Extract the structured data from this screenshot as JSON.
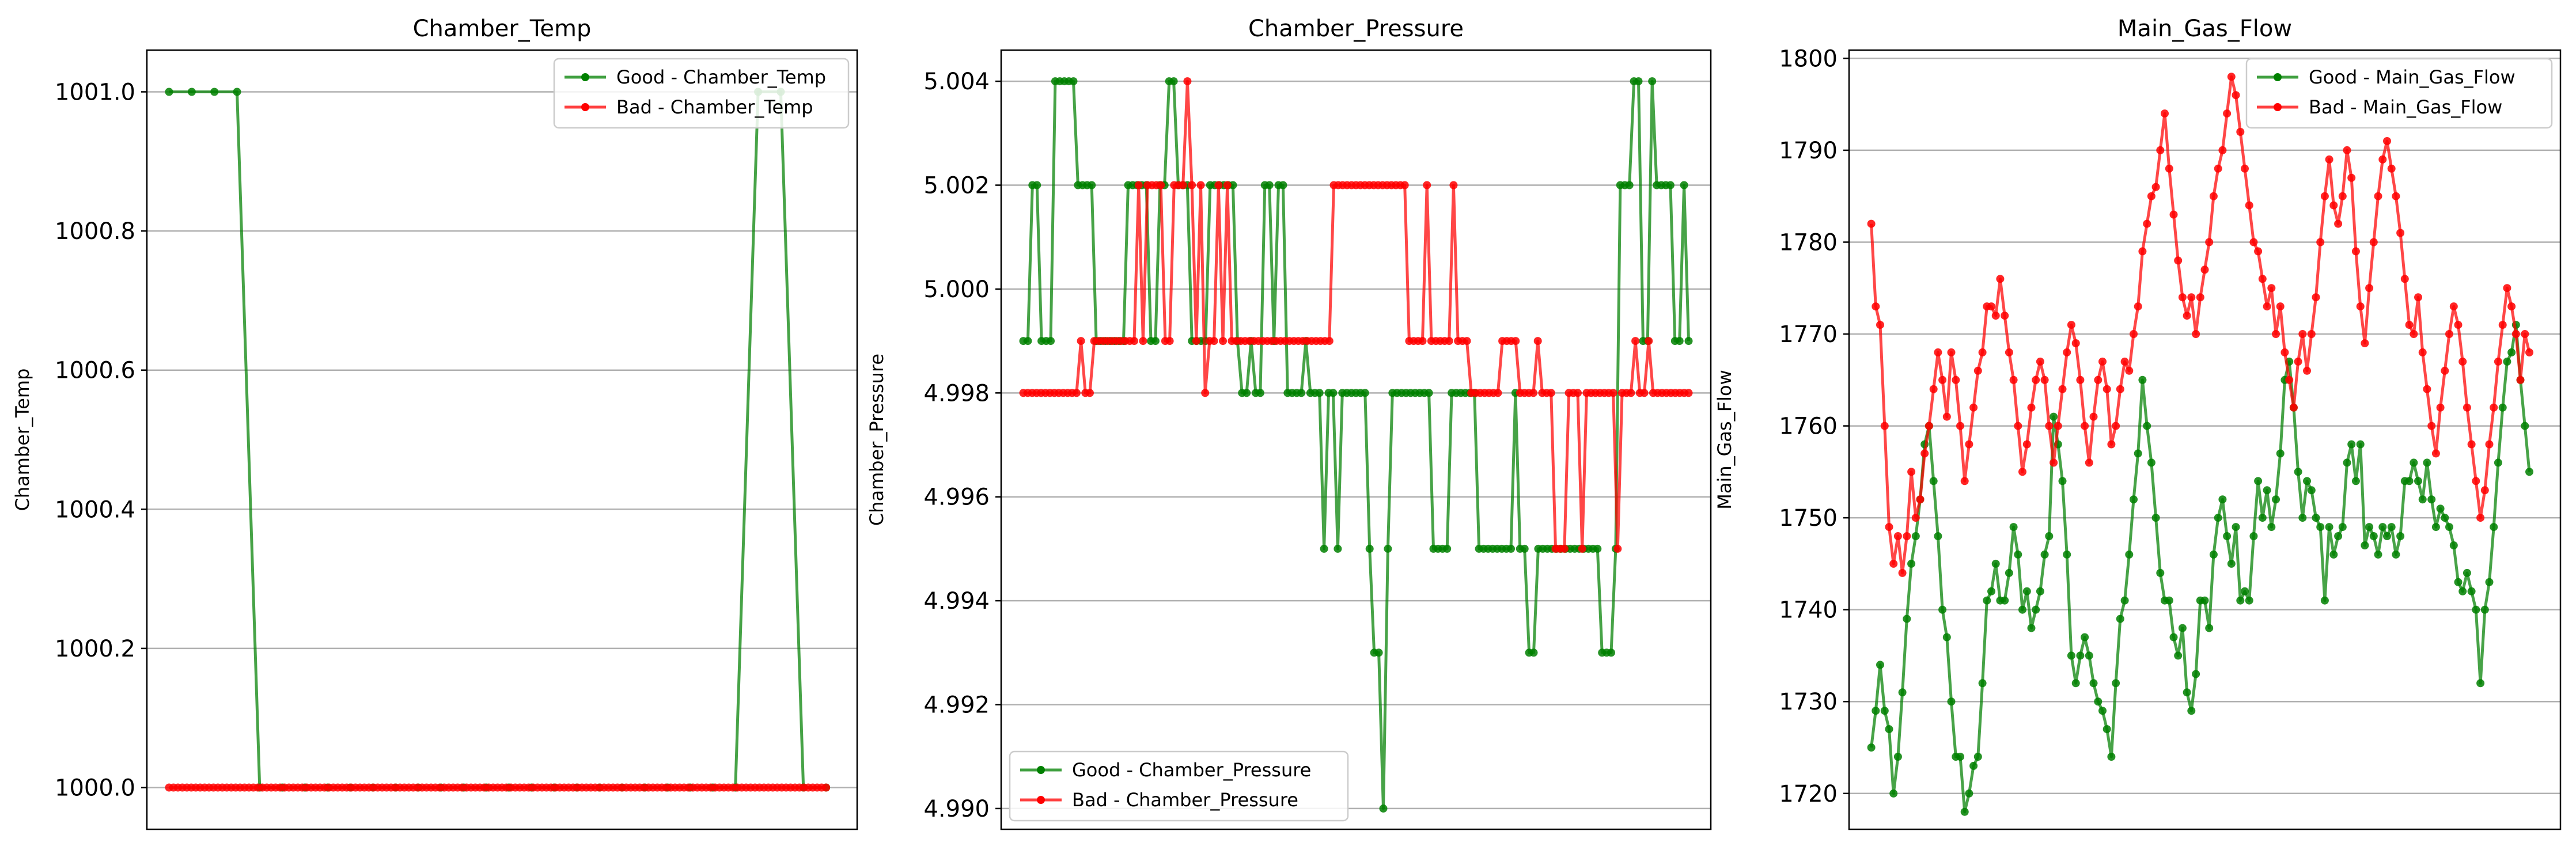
{
  "colors": {
    "good": "#008000",
    "bad": "#ff0000",
    "grid": "#b0b0b0",
    "axis": "#000000"
  },
  "chart_data": [
    {
      "type": "line",
      "title": "Chamber_Temp",
      "xlabel": "",
      "ylabel": "Chamber_Temp",
      "ylim": [
        999.94,
        1001.06
      ],
      "yticks": [
        1000.0,
        1000.2,
        1000.4,
        1000.6,
        1000.8,
        1001.0
      ],
      "ytick_labels": [
        "1000.0",
        "1000.2",
        "1000.4",
        "1000.6",
        "1000.8",
        "1001.0"
      ],
      "grid": "y",
      "legend_position": "upper right",
      "xlim": [
        -5,
        155
      ],
      "series": [
        {
          "name": "Good - Chamber_Temp",
          "color": "#008000",
          "values": [
            1001,
            1001,
            1001,
            1001,
            1000,
            1000,
            1000,
            1000,
            1000,
            1000,
            1000,
            1000,
            1000,
            1000,
            1000,
            1000,
            1000,
            1000,
            1000,
            1000,
            1000,
            1000,
            1000,
            1000,
            1000,
            1000,
            1001,
            1001,
            1000,
            1000
          ]
        },
        {
          "name": "Bad - Chamber_Temp",
          "color": "#ff0000",
          "values": [
            1000,
            1000,
            1000,
            1000,
            1000,
            1000,
            1000,
            1000,
            1000,
            1000,
            1000,
            1000,
            1000,
            1000,
            1000,
            1000,
            1000,
            1000,
            1000,
            1000,
            1000,
            1000,
            1000,
            1000,
            1000,
            1000,
            1000,
            1000,
            1000,
            1000,
            1000,
            1000,
            1000,
            1000,
            1000,
            1000,
            1000,
            1000,
            1000,
            1000,
            1000,
            1000,
            1000,
            1000,
            1000,
            1000,
            1000,
            1000,
            1000,
            1000,
            1000,
            1000,
            1000,
            1000,
            1000,
            1000,
            1000,
            1000,
            1000,
            1000,
            1000,
            1000,
            1000,
            1000,
            1000,
            1000,
            1000,
            1000,
            1000,
            1000,
            1000,
            1000,
            1000,
            1000,
            1000,
            1000,
            1000,
            1000,
            1000,
            1000,
            1000,
            1000,
            1000,
            1000,
            1000,
            1000,
            1000,
            1000,
            1000,
            1000,
            1000,
            1000,
            1000,
            1000,
            1000,
            1000,
            1000,
            1000,
            1000,
            1000,
            1000,
            1000,
            1000,
            1000,
            1000,
            1000,
            1000,
            1000,
            1000,
            1000,
            1000,
            1000,
            1000,
            1000,
            1000,
            1000,
            1000,
            1000,
            1000,
            1000,
            1000,
            1000,
            1000,
            1000,
            1000,
            1000,
            1000,
            1000,
            1000,
            1000,
            1000,
            1000,
            1000,
            1000,
            1000,
            1000,
            1000,
            1000,
            1000,
            1000,
            1000,
            1000,
            1000,
            1000,
            1000,
            1000,
            1000,
            1000,
            1000
          ]
        }
      ]
    },
    {
      "type": "line",
      "title": "Chamber_Pressure",
      "xlabel": "",
      "ylabel": "Chamber_Pressure",
      "ylim": [
        4.9896,
        5.0046
      ],
      "yticks": [
        4.99,
        4.992,
        4.994,
        4.996,
        4.998,
        5.0,
        5.002,
        5.004
      ],
      "ytick_labels": [
        "4.990",
        "4.992",
        "4.994",
        "4.996",
        "4.998",
        "5.000",
        "5.002",
        "5.004"
      ],
      "grid": "y",
      "legend_position": "lower left",
      "xlim": [
        -5,
        155
      ],
      "series": [
        {
          "name": "Good - Chamber_Pressure",
          "color": "#008000",
          "values": [
            4.999,
            4.999,
            5.002,
            5.002,
            4.999,
            4.999,
            4.999,
            5.004,
            5.004,
            5.004,
            5.004,
            5.004,
            5.002,
            5.002,
            5.002,
            5.002,
            4.999,
            4.999,
            4.999,
            4.999,
            4.999,
            4.999,
            4.999,
            5.002,
            5.002,
            5.002,
            5.002,
            5.002,
            4.999,
            4.999,
            5.002,
            5.002,
            5.004,
            5.004,
            5.002,
            5.002,
            5.002,
            4.999,
            4.999,
            4.999,
            4.999,
            5.002,
            5.002,
            5.002,
            5.002,
            5.002,
            5.002,
            4.999,
            4.998,
            4.998,
            4.999,
            4.998,
            4.998,
            5.002,
            5.002,
            4.999,
            5.002,
            5.002,
            4.998,
            4.998,
            4.998,
            4.998,
            4.999,
            4.998,
            4.998,
            4.998,
            4.995,
            4.998,
            4.998,
            4.995,
            4.998,
            4.998,
            4.998,
            4.998,
            4.998,
            4.998,
            4.995,
            4.993,
            4.993,
            4.99,
            4.995,
            4.998,
            4.998,
            4.998,
            4.998,
            4.998,
            4.998,
            4.998,
            4.998,
            4.998,
            4.995,
            4.995,
            4.995,
            4.995,
            4.998,
            4.998,
            4.998,
            4.998,
            4.998,
            4.998,
            4.995,
            4.995,
            4.995,
            4.995,
            4.995,
            4.995,
            4.995,
            4.995,
            4.998,
            4.995,
            4.995,
            4.993,
            4.993,
            4.995,
            4.995,
            4.995,
            4.995,
            4.995,
            4.995,
            4.995,
            4.995,
            4.995,
            4.995,
            4.995,
            4.995,
            4.995,
            4.995,
            4.993,
            4.993,
            4.993,
            4.995,
            5.002,
            5.002,
            5.002,
            5.004,
            5.004,
            4.999,
            4.999,
            5.004,
            5.002,
            5.002,
            5.002,
            5.002,
            4.999,
            4.999,
            5.002,
            4.999
          ]
        },
        {
          "name": "Bad - Chamber_Pressure",
          "color": "#ff0000",
          "values": [
            4.998,
            4.998,
            4.998,
            4.998,
            4.998,
            4.998,
            4.998,
            4.998,
            4.998,
            4.998,
            4.998,
            4.998,
            4.998,
            4.999,
            4.998,
            4.998,
            4.999,
            4.999,
            4.999,
            4.999,
            4.999,
            4.999,
            4.999,
            4.999,
            4.999,
            4.999,
            5.002,
            4.999,
            5.002,
            5.002,
            5.002,
            5.002,
            4.999,
            4.999,
            5.002,
            5.002,
            5.002,
            5.004,
            5.002,
            4.999,
            5.002,
            4.998,
            4.999,
            4.999,
            5.002,
            4.999,
            5.002,
            4.999,
            4.999,
            4.999,
            4.999,
            4.999,
            4.999,
            4.999,
            4.999,
            4.999,
            4.999,
            4.999,
            4.999,
            4.999,
            4.999,
            4.999,
            4.999,
            4.999,
            4.999,
            4.999,
            4.999,
            4.999,
            4.999,
            4.999,
            5.002,
            5.002,
            5.002,
            5.002,
            5.002,
            5.002,
            5.002,
            5.002,
            5.002,
            5.002,
            5.002,
            5.002,
            5.002,
            5.002,
            5.002,
            5.002,
            5.002,
            4.999,
            4.999,
            4.999,
            4.999,
            5.002,
            4.999,
            4.999,
            4.999,
            4.999,
            4.999,
            5.002,
            4.999,
            4.999,
            4.999,
            4.998,
            4.998,
            4.998,
            4.998,
            4.998,
            4.998,
            4.998,
            4.999,
            4.999,
            4.999,
            4.999,
            4.998,
            4.998,
            4.998,
            4.998,
            4.999,
            4.998,
            4.998,
            4.998,
            4.995,
            4.995,
            4.995,
            4.998,
            4.998,
            4.998,
            4.995,
            4.998,
            4.998,
            4.998,
            4.998,
            4.998,
            4.998,
            4.998,
            4.995,
            4.998,
            4.998,
            4.998,
            4.999,
            4.998,
            4.998,
            4.999,
            4.998,
            4.998,
            4.998,
            4.998,
            4.998,
            4.998,
            4.998,
            4.998,
            4.998
          ]
        }
      ]
    },
    {
      "type": "line",
      "title": "Main_Gas_Flow",
      "xlabel": "",
      "ylabel": "Main_Gas_Flow",
      "ylim": [
        1716.1,
        1800.9
      ],
      "yticks": [
        1720,
        1730,
        1740,
        1750,
        1760,
        1770,
        1780,
        1790,
        1800
      ],
      "ytick_labels": [
        "1720",
        "1730",
        "1740",
        "1750",
        "1760",
        "1770",
        "1780",
        "1790",
        "1800"
      ],
      "grid": "y",
      "legend_position": "upper right",
      "xlim": [
        -5,
        155
      ],
      "series": [
        {
          "name": "Good - Main_Gas_Flow",
          "color": "#008000",
          "values": [
            1725,
            1729,
            1734,
            1729,
            1727,
            1720,
            1724,
            1731,
            1739,
            1745,
            1748,
            1752,
            1758,
            1760,
            1754,
            1748,
            1740,
            1737,
            1730,
            1724,
            1724,
            1718,
            1720,
            1723,
            1724,
            1732,
            1741,
            1742,
            1745,
            1741,
            1741,
            1744,
            1749,
            1746,
            1740,
            1742,
            1738,
            1740,
            1742,
            1746,
            1748,
            1761,
            1758,
            1754,
            1746,
            1735,
            1732,
            1735,
            1737,
            1735,
            1732,
            1730,
            1729,
            1727,
            1724,
            1732,
            1739,
            1741,
            1746,
            1752,
            1757,
            1765,
            1760,
            1756,
            1750,
            1744,
            1741,
            1741,
            1737,
            1735,
            1738,
            1731,
            1729,
            1733,
            1741,
            1741,
            1738,
            1746,
            1750,
            1752,
            1748,
            1745,
            1749,
            1741,
            1742,
            1741,
            1748,
            1754,
            1750,
            1753,
            1749,
            1752,
            1757,
            1765,
            1767,
            1762,
            1755,
            1750,
            1754,
            1753,
            1750,
            1749,
            1741,
            1749,
            1746,
            1748,
            1749,
            1756,
            1758,
            1754,
            1758,
            1747,
            1749,
            1748,
            1746,
            1749,
            1748,
            1749,
            1746,
            1748,
            1754,
            1754,
            1756,
            1754,
            1752,
            1756,
            1752,
            1749,
            1751,
            1750,
            1749,
            1747,
            1743,
            1742,
            1744,
            1742,
            1740,
            1732,
            1740,
            1743,
            1749,
            1756,
            1762,
            1767,
            1768,
            1771,
            1765,
            1760,
            1755
          ]
        },
        {
          "name": "Bad - Main_Gas_Flow",
          "color": "#ff0000",
          "values": [
            1782,
            1773,
            1771,
            1760,
            1749,
            1745,
            1748,
            1744,
            1748,
            1755,
            1750,
            1752,
            1757,
            1760,
            1764,
            1768,
            1765,
            1761,
            1768,
            1765,
            1760,
            1754,
            1758,
            1762,
            1766,
            1768,
            1773,
            1773,
            1772,
            1776,
            1772,
            1768,
            1765,
            1760,
            1755,
            1758,
            1762,
            1765,
            1767,
            1765,
            1760,
            1756,
            1760,
            1764,
            1768,
            1771,
            1769,
            1765,
            1760,
            1756,
            1761,
            1765,
            1767,
            1764,
            1758,
            1760,
            1764,
            1767,
            1766,
            1770,
            1773,
            1779,
            1782,
            1785,
            1786,
            1790,
            1794,
            1788,
            1783,
            1778,
            1774,
            1772,
            1774,
            1770,
            1774,
            1777,
            1780,
            1785,
            1788,
            1790,
            1794,
            1798,
            1796,
            1792,
            1788,
            1784,
            1780,
            1779,
            1776,
            1773,
            1775,
            1770,
            1773,
            1768,
            1765,
            1762,
            1767,
            1770,
            1766,
            1770,
            1774,
            1780,
            1785,
            1789,
            1784,
            1782,
            1785,
            1790,
            1787,
            1779,
            1773,
            1769,
            1775,
            1780,
            1785,
            1789,
            1791,
            1788,
            1785,
            1781,
            1776,
            1771,
            1770,
            1774,
            1768,
            1764,
            1760,
            1757,
            1762,
            1766,
            1770,
            1773,
            1771,
            1767,
            1762,
            1758,
            1754,
            1750,
            1753,
            1758,
            1762,
            1767,
            1771,
            1775,
            1773,
            1770,
            1765,
            1770,
            1768
          ]
        }
      ]
    }
  ]
}
